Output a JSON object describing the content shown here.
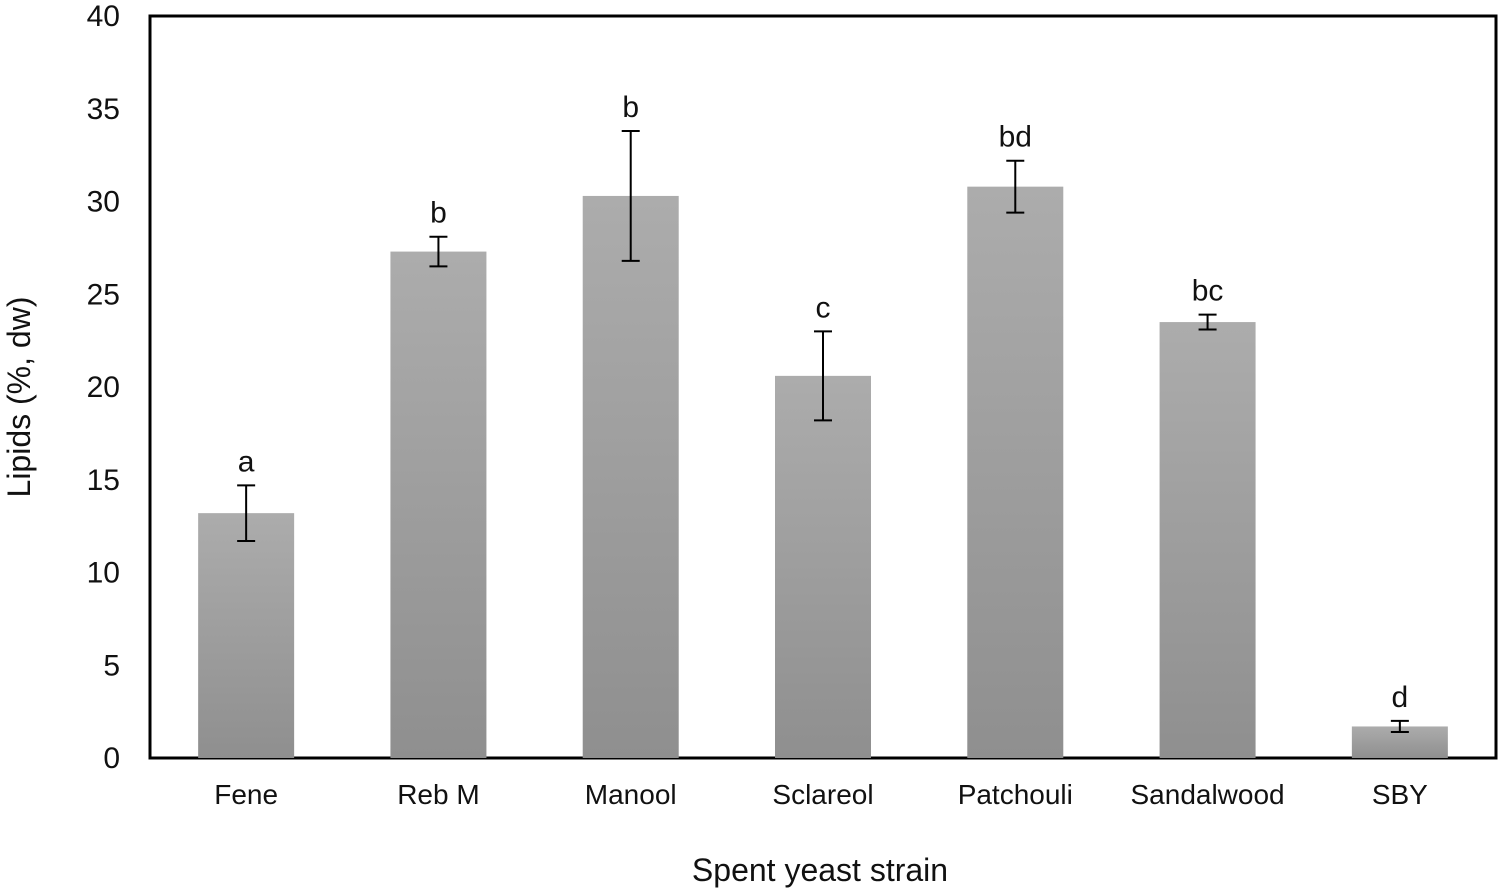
{
  "chart_data": {
    "type": "bar",
    "xlabel": "Spent yeast strain",
    "ylabel": "Lipids (%, dw)",
    "ylim": [
      0,
      40
    ],
    "yticks": [
      0,
      5,
      10,
      15,
      20,
      25,
      30,
      35,
      40
    ],
    "grid": false,
    "legend": "none",
    "bar_color": "#a6a6a6",
    "categories": [
      "Fene",
      "Reb M",
      "Manool",
      "Sclareol",
      "Patchouli",
      "Sandalwood",
      "SBY"
    ],
    "values": [
      13.2,
      27.3,
      30.3,
      20.6,
      30.8,
      23.5,
      1.7
    ],
    "error": [
      1.5,
      0.8,
      3.5,
      2.4,
      1.4,
      0.4,
      0.3
    ],
    "significance_labels": [
      "a",
      "b",
      "b",
      "c",
      "bd",
      "bc",
      "d"
    ]
  }
}
